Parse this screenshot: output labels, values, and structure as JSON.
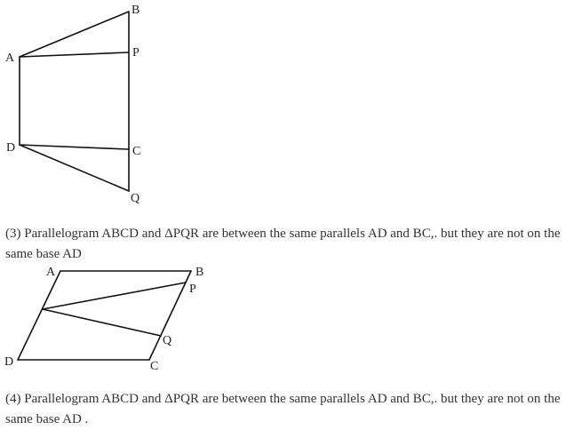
{
  "figure1": {
    "labels": {
      "A": "A",
      "B": "B",
      "P": "P",
      "D": "D",
      "C": "C",
      "Q": "Q"
    }
  },
  "caption3": {
    "text": "(3) Parallelogram ABCD and ΔPQR are between the same parallels AD and BC,. but they are not on the same base AD"
  },
  "figure2": {
    "labels": {
      "A": "A",
      "B": "B",
      "P": "P",
      "D": "D",
      "C": "C",
      "Q": "Q"
    }
  },
  "caption4": {
    "text": "(4) Parallelogram ABCD and ΔPQR are between the same parallels AD and BC,. but they are not on the same base AD ."
  }
}
